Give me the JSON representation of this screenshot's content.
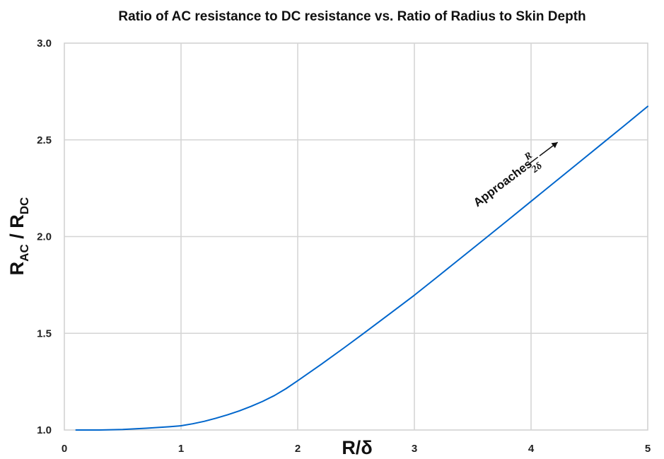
{
  "chart_data": {
    "type": "line",
    "title": "Ratio of AC resistance to DC resistance vs. Ratio of Radius to Skin Depth",
    "xlabel": "R/δ",
    "ylabel": {
      "main": "R",
      "sub1": "AC",
      "sep": " / ",
      "main2": "R",
      "sub2": "DC"
    },
    "xlim": [
      0,
      5
    ],
    "ylim": [
      1.0,
      3.0
    ],
    "x_ticks": [
      "0",
      "1",
      "2",
      "3",
      "4",
      "5"
    ],
    "y_ticks": [
      "1.0",
      "1.5",
      "2.0",
      "2.5",
      "3.0"
    ],
    "grid": true,
    "line_color": "#0066cc",
    "series": [
      {
        "x": [
          0.1,
          0.3,
          0.5,
          0.7,
          0.9,
          1.0,
          1.1,
          1.2,
          1.3,
          1.4,
          1.5,
          1.6,
          1.7,
          1.8,
          1.9,
          2.0,
          2.2,
          2.4,
          2.6,
          2.8,
          3.0,
          3.2,
          3.4,
          3.6,
          3.8,
          4.0,
          4.2,
          4.4,
          4.6,
          4.8,
          5.0
        ],
        "values": [
          1.0,
          1.0,
          1.003,
          1.009,
          1.017,
          1.022,
          1.032,
          1.045,
          1.061,
          1.079,
          1.099,
          1.122,
          1.148,
          1.178,
          1.214,
          1.255,
          1.339,
          1.426,
          1.515,
          1.606,
          1.697,
          1.793,
          1.89,
          1.987,
          2.084,
          2.182,
          2.28,
          2.378,
          2.476,
          2.574,
          2.673
        ]
      }
    ],
    "annotation": {
      "text": "Approaches",
      "fraction_numerator": "R",
      "fraction_denominator": "2δ"
    }
  }
}
